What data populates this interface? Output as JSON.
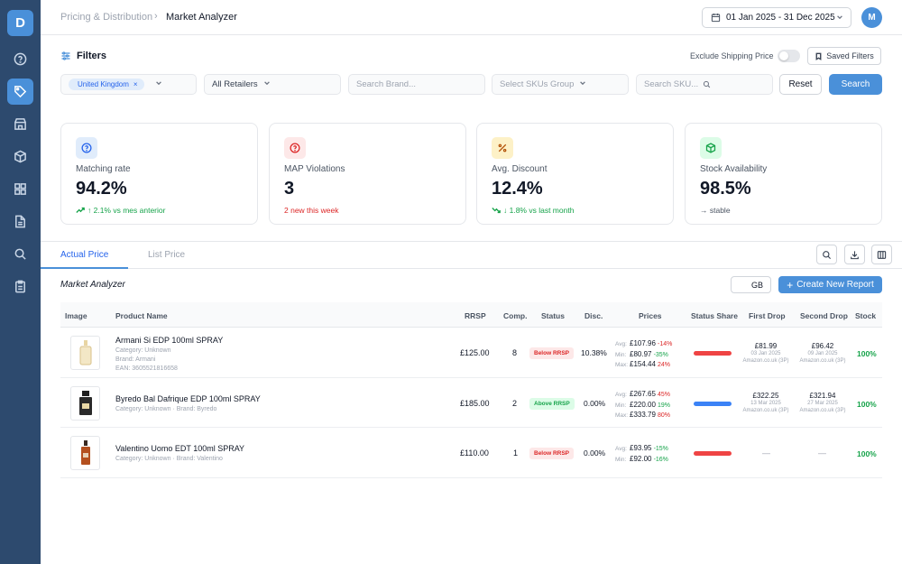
{
  "sidebar": {
    "logo": "D",
    "items": [
      {
        "icon": "help-circle-icon"
      },
      {
        "icon": "tag-icon",
        "active": true
      },
      {
        "icon": "store-icon"
      },
      {
        "icon": "package-icon"
      },
      {
        "icon": "grid-icon"
      },
      {
        "icon": "document-icon"
      },
      {
        "icon": "search-icon"
      },
      {
        "icon": "clipboard-icon"
      }
    ]
  },
  "header": {
    "breadcrumb_parent": "Pricing & Distribution",
    "breadcrumb_current": "Market Analyzer",
    "date_range": "01 Jan 2025 - 31 Dec 2025",
    "avatar": "M"
  },
  "filters": {
    "title": "Filters",
    "exclude_shipping_label": "Exclude Shipping Price",
    "exclude_shipping_on": false,
    "saved_filters_label": "Saved Filters",
    "country_chip": "United Kingdom",
    "retailers": "All Retailers",
    "brand_placeholder": "Search Brand...",
    "sku_group_placeholder": "Select SKUs Group",
    "sku_placeholder": "Search SKU...",
    "reset_label": "Reset",
    "search_label": "Search"
  },
  "kpis": [
    {
      "label": "Matching rate",
      "value": "94.2%",
      "trend": "↑ 2.1% vs mes anterior",
      "color": "#2563eb",
      "bg": "#e0ecfb",
      "trend_color": "#16a34a",
      "icon": "help-circle-icon"
    },
    {
      "label": "MAP Violations",
      "value": "3",
      "trend": "2 new this week",
      "color": "#dc2626",
      "bg": "#fde8e8",
      "trend_color": "#dc2626",
      "icon": "alert-circle-icon"
    },
    {
      "label": "Avg. Discount",
      "value": "12.4%",
      "trend": "↓ 1.8% vs last month",
      "color": "#b45309",
      "bg": "#fdf1c7",
      "trend_color": "#16a34a",
      "icon": "percent-icon"
    },
    {
      "label": "Stock Availability",
      "value": "98.5%",
      "trend": "→ stable",
      "color": "#16a34a",
      "bg": "#dcfce7",
      "trend_color": "#4b5563",
      "icon": "box-icon"
    }
  ],
  "tabs": [
    {
      "label": "Actual Price",
      "active": true
    },
    {
      "label": "List Price",
      "active": false
    }
  ],
  "section": {
    "title": "Market Analyzer",
    "gb_label": "GB",
    "create_label": "Create New Report"
  },
  "table": {
    "headers": [
      "Image",
      "Product Name",
      "RRSP",
      "Comp.",
      "Status",
      "Disc.",
      "Prices",
      "Status Share",
      "First Drop",
      "Second Drop",
      "Stock"
    ],
    "rows": [
      {
        "name": "Armani Si EDP 100ml SPRAY",
        "meta": [
          "Category: Unknown",
          "Brand: Armani",
          "EAN: 3605521816658"
        ],
        "rrsp": "£125.00",
        "comp": "8",
        "status": "Below RRSP",
        "status_type": "below",
        "disc": "10.38%",
        "prices": [
          {
            "k": "Avg:",
            "v": "£107.96",
            "d": "-14%",
            "t": "neg"
          },
          {
            "k": "Min:",
            "v": "£80.97",
            "d": "-35%",
            "t": "pos"
          },
          {
            "k": "Max:",
            "v": "£154.44",
            "d": "24%",
            "t": "neg"
          }
        ],
        "share_color": "#ef4444",
        "first_drop": {
          "price": "£81.99",
          "date": "03 Jan 2025",
          "source": "Amazon.co.uk (3P)"
        },
        "second_drop": {
          "price": "£96.42",
          "date": "09 Jan 2025",
          "source": "Amazon.co.uk (3P)"
        },
        "stock": "100%"
      },
      {
        "name": "Byredo Bal Dafrique EDP 100ml SPRAY",
        "meta": [
          "Category: Unknown  ·  Brand: Byredo"
        ],
        "rrsp": "£185.00",
        "comp": "2",
        "status": "Above RRSP",
        "status_type": "above",
        "disc": "0.00%",
        "prices": [
          {
            "k": "Avg:",
            "v": "£267.65",
            "d": "45%",
            "t": "neg"
          },
          {
            "k": "Min:",
            "v": "£220.00",
            "d": "19%",
            "t": "pos"
          },
          {
            "k": "Max:",
            "v": "£333.79",
            "d": "80%",
            "t": "neg"
          }
        ],
        "share_color": "#3b82f6",
        "first_drop": {
          "price": "£322.25",
          "date": "13 Mar 2025",
          "source": "Amazon.co.uk (3P)"
        },
        "second_drop": {
          "price": "£321.94",
          "date": "27 Mar 2025",
          "source": "Amazon.co.uk (3P)"
        },
        "stock": "100%"
      },
      {
        "name": "Valentino Uomo EDT 100ml SPRAY",
        "meta": [
          "Category: Unknown  ·  Brand: Valentino"
        ],
        "rrsp": "£110.00",
        "comp": "1",
        "status": "Below RRSP",
        "status_type": "below",
        "disc": "0.00%",
        "prices": [
          {
            "k": "Avg:",
            "v": "£93.95",
            "d": "-15%",
            "t": "pos"
          },
          {
            "k": "Min:",
            "v": "£92.00",
            "d": "-16%",
            "t": "pos"
          }
        ],
        "share_color": "#ef4444",
        "first_drop": null,
        "second_drop": null,
        "dash": "—",
        "stock": "100%"
      }
    ]
  }
}
